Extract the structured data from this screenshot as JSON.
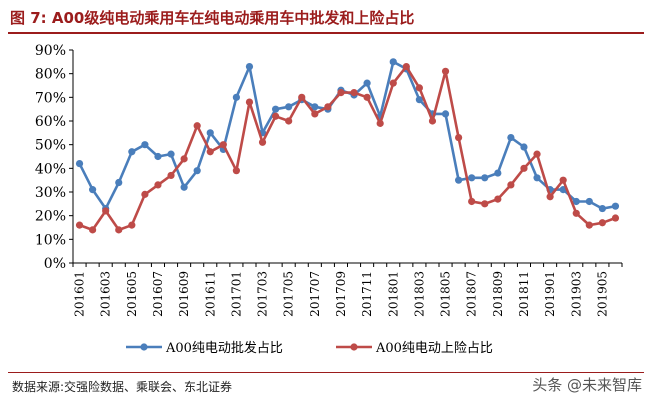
{
  "figure": {
    "title": "图 7: A00级纯电动乘用车在纯电动乘用车中批发和上险占比",
    "source": "数据来源:交强险数据、乘联会、东北证券",
    "watermark": "头条 @未来智库"
  },
  "chart_data": {
    "type": "line",
    "title": "",
    "xlabel": "",
    "ylabel": "",
    "ylim": [
      0,
      90
    ],
    "yticks": [
      "0%",
      "10%",
      "20%",
      "30%",
      "40%",
      "50%",
      "60%",
      "70%",
      "80%",
      "90%"
    ],
    "grid": false,
    "legend_position": "bottom",
    "x": [
      "201601",
      "201602",
      "201603",
      "201604",
      "201605",
      "201606",
      "201607",
      "201608",
      "201609",
      "201610",
      "201611",
      "201612",
      "201701",
      "201702",
      "201703",
      "201704",
      "201705",
      "201706",
      "201707",
      "201708",
      "201709",
      "201710",
      "201711",
      "201712",
      "201801",
      "201802",
      "201803",
      "201804",
      "201805",
      "201806",
      "201807",
      "201808",
      "201809",
      "201810",
      "201811",
      "201812",
      "201901",
      "201902",
      "201903",
      "201904",
      "201905",
      "201906"
    ],
    "xticks": [
      "201601",
      "201603",
      "201605",
      "201607",
      "201609",
      "201611",
      "201701",
      "201703",
      "201705",
      "201707",
      "201709",
      "201711",
      "201801",
      "201803",
      "201805",
      "201807",
      "201809",
      "201811",
      "201901",
      "201903",
      "201905"
    ],
    "series": [
      {
        "name": "A00纯电动批发占比",
        "color": "#4a7ebb",
        "values": [
          42,
          31,
          23,
          34,
          47,
          50,
          45,
          46,
          32,
          39,
          55,
          48,
          70,
          83,
          55,
          65,
          66,
          69,
          66,
          65,
          73,
          71,
          76,
          62,
          85,
          82,
          69,
          63,
          63,
          35,
          36,
          36,
          38,
          53,
          49,
          36,
          31,
          31,
          26,
          26,
          23,
          24
        ]
      },
      {
        "name": "A00纯电动上险占比",
        "color": "#be4b48",
        "values": [
          16,
          14,
          22,
          14,
          16,
          29,
          33,
          37,
          44,
          58,
          47,
          50,
          39,
          68,
          51,
          62,
          60,
          70,
          63,
          66,
          72,
          72,
          70,
          59,
          76,
          83,
          74,
          60,
          81,
          53,
          26,
          25,
          27,
          33,
          40,
          46,
          28,
          35,
          21,
          16,
          17,
          19
        ]
      }
    ]
  }
}
